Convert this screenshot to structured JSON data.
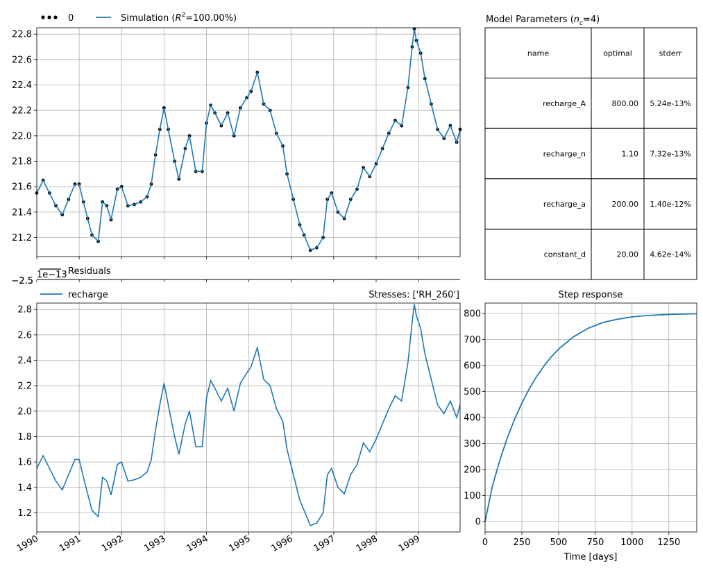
{
  "chart_data": [
    {
      "type": "line",
      "legend": [
        "0",
        "Simulation ($R^2$=100.00%)"
      ],
      "legend_main": {
        "obs_label": "0",
        "sim_prefix": "Simulation (",
        "sim_r": "R",
        "sim_sup": "2",
        "sim_suffix": "=100.00%)"
      },
      "ylim": [
        21.05,
        22.85
      ],
      "yticks": [
        "21.2",
        "21.4",
        "21.6",
        "21.8",
        "22.0",
        "22.2",
        "22.4",
        "22.6",
        "22.8"
      ],
      "series": [
        {
          "x": [
            1990.0,
            1990.15,
            1990.3,
            1990.45,
            1990.6,
            1990.75,
            1990.9,
            1991.0,
            1991.1,
            1991.2,
            1991.3,
            1991.45,
            1991.55,
            1991.65,
            1991.75,
            1991.9,
            1992.0,
            1992.15,
            1992.3,
            1992.45,
            1992.6,
            1992.7,
            1992.8,
            1992.9,
            1993.0,
            1993.1,
            1993.25,
            1993.35,
            1993.5,
            1993.6,
            1993.75,
            1993.9,
            1994.0,
            1994.1,
            1994.2,
            1994.35,
            1994.5,
            1994.65,
            1994.8,
            1994.95,
            1995.05,
            1995.2,
            1995.35,
            1995.5,
            1995.65,
            1995.8,
            1995.9,
            1996.05,
            1996.2,
            1996.3,
            1996.45,
            1996.6,
            1996.75,
            1996.85,
            1996.95,
            1997.1,
            1997.25,
            1997.4,
            1997.55,
            1997.7,
            1997.85,
            1998.0,
            1998.15,
            1998.3,
            1998.45,
            1998.6,
            1998.75,
            1998.85,
            1998.9,
            1998.95,
            1999.05,
            1999.15,
            1999.3,
            1999.45,
            1999.6,
            1999.75,
            1999.9,
            1999.98
          ],
          "y": [
            21.55,
            21.65,
            21.55,
            21.45,
            21.38,
            21.5,
            21.62,
            21.62,
            21.48,
            21.35,
            21.22,
            21.17,
            21.48,
            21.45,
            21.34,
            21.58,
            21.6,
            21.45,
            21.46,
            21.48,
            21.52,
            21.62,
            21.85,
            22.05,
            22.22,
            22.05,
            21.8,
            21.66,
            21.9,
            22.0,
            21.72,
            21.72,
            22.1,
            22.24,
            22.18,
            22.08,
            22.18,
            22.0,
            22.22,
            22.3,
            22.35,
            22.5,
            22.25,
            22.2,
            22.02,
            21.92,
            21.7,
            21.5,
            21.3,
            21.22,
            21.1,
            21.12,
            21.2,
            21.5,
            21.55,
            21.4,
            21.35,
            21.5,
            21.58,
            21.75,
            21.68,
            21.78,
            21.9,
            22.02,
            22.12,
            22.08,
            22.38,
            22.7,
            22.84,
            22.75,
            22.65,
            22.45,
            22.25,
            22.05,
            21.98,
            22.08,
            21.95,
            22.05
          ]
        }
      ]
    },
    {
      "type": "table",
      "title_prefix": "Model Parameters (",
      "title_n": "n",
      "title_sub": "c",
      "title_suffix": "=4)",
      "columns": [
        "name",
        "optimal",
        "stderr"
      ],
      "rows": [
        [
          "recharge_A",
          "800.00",
          "5.24e-13%"
        ],
        [
          "recharge_n",
          "1.10",
          "7.32e-13%"
        ],
        [
          "recharge_a",
          "200.00",
          "1.40e-12%"
        ],
        [
          "constant_d",
          "20.00",
          "4.62e-14%"
        ]
      ]
    },
    {
      "type": "line",
      "title": "Residuals",
      "tick_label": "−2.5",
      "offset_text": "1e−13"
    },
    {
      "type": "line",
      "legend": [
        "recharge"
      ],
      "title": "Stresses: ['RH_260']",
      "ylim": [
        1.05,
        2.85
      ],
      "yticks": [
        "1.2",
        "1.4",
        "1.6",
        "1.8",
        "2.0",
        "2.2",
        "2.4",
        "2.6",
        "2.8"
      ],
      "xticks": [
        "1990",
        "1991",
        "1992",
        "1993",
        "1994",
        "1995",
        "1996",
        "1997",
        "1998",
        "1999"
      ],
      "series": [
        {
          "name": "recharge",
          "x": [
            1990.0,
            1990.15,
            1990.3,
            1990.45,
            1990.6,
            1990.75,
            1990.9,
            1991.0,
            1991.1,
            1991.2,
            1991.3,
            1991.45,
            1991.55,
            1991.65,
            1991.75,
            1991.9,
            1992.0,
            1992.15,
            1992.3,
            1992.45,
            1992.6,
            1992.7,
            1992.8,
            1992.9,
            1993.0,
            1993.1,
            1993.25,
            1993.35,
            1993.5,
            1993.6,
            1993.75,
            1993.9,
            1994.0,
            1994.1,
            1994.2,
            1994.35,
            1994.5,
            1994.65,
            1994.8,
            1994.95,
            1995.05,
            1995.2,
            1995.35,
            1995.5,
            1995.65,
            1995.8,
            1995.9,
            1996.05,
            1996.2,
            1996.3,
            1996.45,
            1996.6,
            1996.75,
            1996.85,
            1996.95,
            1997.1,
            1997.25,
            1997.4,
            1997.55,
            1997.7,
            1997.85,
            1998.0,
            1998.15,
            1998.3,
            1998.45,
            1998.6,
            1998.75,
            1998.85,
            1998.9,
            1998.95,
            1999.05,
            1999.15,
            1999.3,
            1999.45,
            1999.6,
            1999.75,
            1999.9,
            1999.98
          ],
          "y": [
            1.55,
            1.65,
            1.55,
            1.45,
            1.38,
            1.5,
            1.62,
            1.62,
            1.48,
            1.35,
            1.22,
            1.17,
            1.48,
            1.45,
            1.34,
            1.58,
            1.6,
            1.45,
            1.46,
            1.48,
            1.52,
            1.62,
            1.85,
            2.05,
            2.22,
            2.05,
            1.8,
            1.66,
            1.9,
            2.0,
            1.72,
            1.72,
            2.1,
            2.24,
            2.18,
            2.08,
            2.18,
            2.0,
            2.22,
            2.3,
            2.35,
            2.5,
            2.25,
            2.2,
            2.02,
            1.92,
            1.7,
            1.5,
            1.3,
            1.22,
            1.1,
            1.12,
            1.2,
            1.5,
            1.55,
            1.4,
            1.35,
            1.5,
            1.58,
            1.75,
            1.68,
            1.78,
            1.9,
            2.02,
            2.12,
            2.08,
            2.38,
            2.7,
            2.84,
            2.75,
            2.65,
            2.45,
            2.25,
            2.05,
            1.98,
            2.08,
            1.95,
            2.05
          ]
        }
      ]
    },
    {
      "type": "line",
      "title": "Step response",
      "xlabel": "Time [days]",
      "xlim": [
        0,
        1440
      ],
      "ylim": [
        -40,
        840
      ],
      "xticks": [
        "0",
        "250",
        "500",
        "750",
        "1000",
        "1250"
      ],
      "yticks": [
        "0",
        "100",
        "200",
        "300",
        "400",
        "500",
        "600",
        "700",
        "800"
      ],
      "series": [
        {
          "x": [
            0,
            50,
            100,
            150,
            200,
            250,
            300,
            350,
            400,
            450,
            500,
            600,
            700,
            800,
            900,
            1000,
            1100,
            1200,
            1300,
            1440
          ],
          "y": [
            0,
            137,
            236,
            320,
            393,
            455,
            510,
            557,
            598,
            633,
            663,
            710,
            743,
            765,
            778,
            787,
            792,
            795,
            797,
            799
          ]
        }
      ]
    }
  ]
}
